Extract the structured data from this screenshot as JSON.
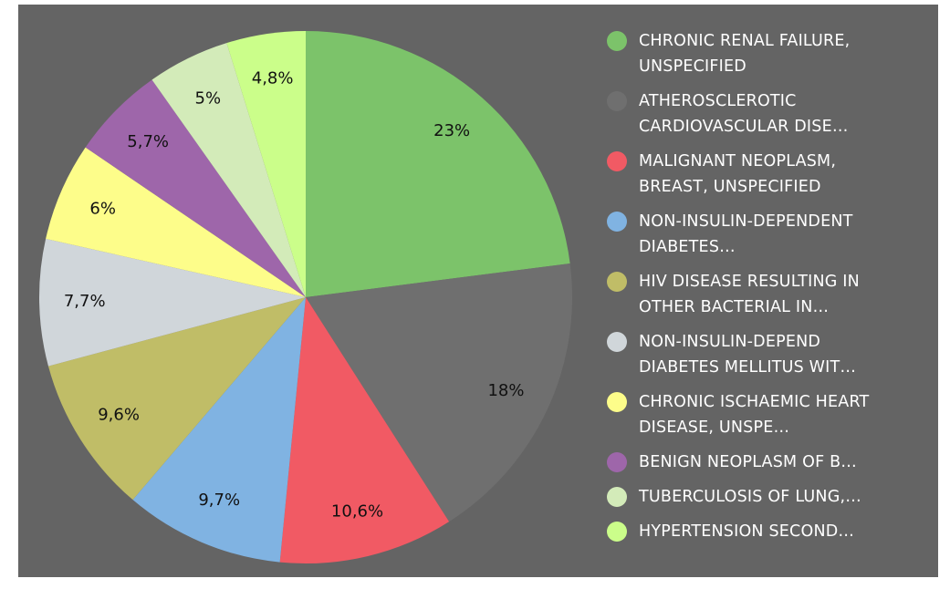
{
  "chart_data": {
    "type": "pie",
    "categories": [
      "CHRONIC RENAL FAILURE, UNSPECIFIED",
      "ATHEROSCLEROTIC CARDIOVASCULAR DISE…",
      "MALIGNANT NEOPLASM, BREAST, UNSPECIFIED",
      "NON-INSULIN-DEPENDENT DIABETES…",
      "HIV DISEASE RESULTING IN OTHER BACTERIAL IN…",
      "NON-INSULIN-DEPEND DIABETES MELLITUS WIT…",
      "CHRONIC ISCHAEMIC HEART DISEASE, UNSPE…",
      "BENIGN NEOPLASM OF B…",
      "TUBERCULOSIS OF LUNG,…",
      "HYPERTENSION SECOND…"
    ],
    "values": [
      23,
      18,
      10.6,
      9.7,
      9.6,
      7.7,
      6,
      5.7,
      5,
      4.8
    ],
    "value_labels": [
      "23%",
      "18%",
      "10,6%",
      "9,7%",
      "9,6%",
      "7,7%",
      "6%",
      "5,7%",
      "5%",
      "4,8%"
    ],
    "colors": [
      "#7cc36a",
      "#6f6f6f",
      "#f15a64",
      "#80b3e2",
      "#c0bd67",
      "#d0d6da",
      "#fdfd8a",
      "#9e66aa",
      "#d3ebb9",
      "#cbfe8a"
    ],
    "legend": "right"
  }
}
